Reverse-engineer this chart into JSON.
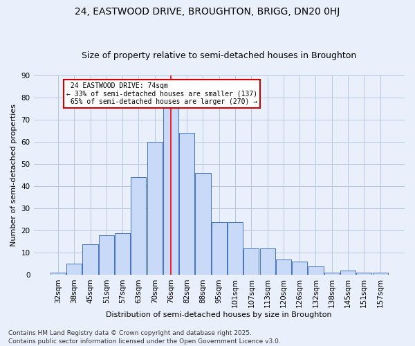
{
  "title": "24, EASTWOOD DRIVE, BROUGHTON, BRIGG, DN20 0HJ",
  "subtitle": "Size of property relative to semi-detached houses in Broughton",
  "xlabel": "Distribution of semi-detached houses by size in Broughton",
  "ylabel": "Number of semi-detached properties",
  "categories": [
    "32sqm",
    "38sqm",
    "45sqm",
    "51sqm",
    "57sqm",
    "63sqm",
    "70sqm",
    "76sqm",
    "82sqm",
    "88sqm",
    "95sqm",
    "101sqm",
    "107sqm",
    "113sqm",
    "120sqm",
    "126sqm",
    "132sqm",
    "138sqm",
    "145sqm",
    "151sqm",
    "157sqm"
  ],
  "values": [
    1,
    5,
    14,
    18,
    19,
    44,
    60,
    76,
    64,
    46,
    24,
    24,
    12,
    12,
    7,
    6,
    4,
    1,
    2,
    1,
    1
  ],
  "bar_color": "#c9daf8",
  "bar_edge_color": "#4472c4",
  "grid_color": "#b8c7e0",
  "bg_color": "#eaf0fb",
  "property_label": "24 EASTWOOD DRIVE: 74sqm",
  "pct_smaller": 33,
  "pct_larger": 65,
  "n_smaller": 137,
  "n_larger": 270,
  "vline_x_index": 7,
  "vline_color": "red",
  "annotation_box_color": "#cc0000",
  "ylim": [
    0,
    90
  ],
  "yticks": [
    0,
    10,
    20,
    30,
    40,
    50,
    60,
    70,
    80,
    90
  ],
  "footnote1": "Contains HM Land Registry data © Crown copyright and database right 2025.",
  "footnote2": "Contains public sector information licensed under the Open Government Licence v3.0.",
  "title_fontsize": 10,
  "subtitle_fontsize": 9,
  "axis_label_fontsize": 8,
  "tick_fontsize": 7.5,
  "annotation_fontsize": 7,
  "footnote_fontsize": 6.5
}
